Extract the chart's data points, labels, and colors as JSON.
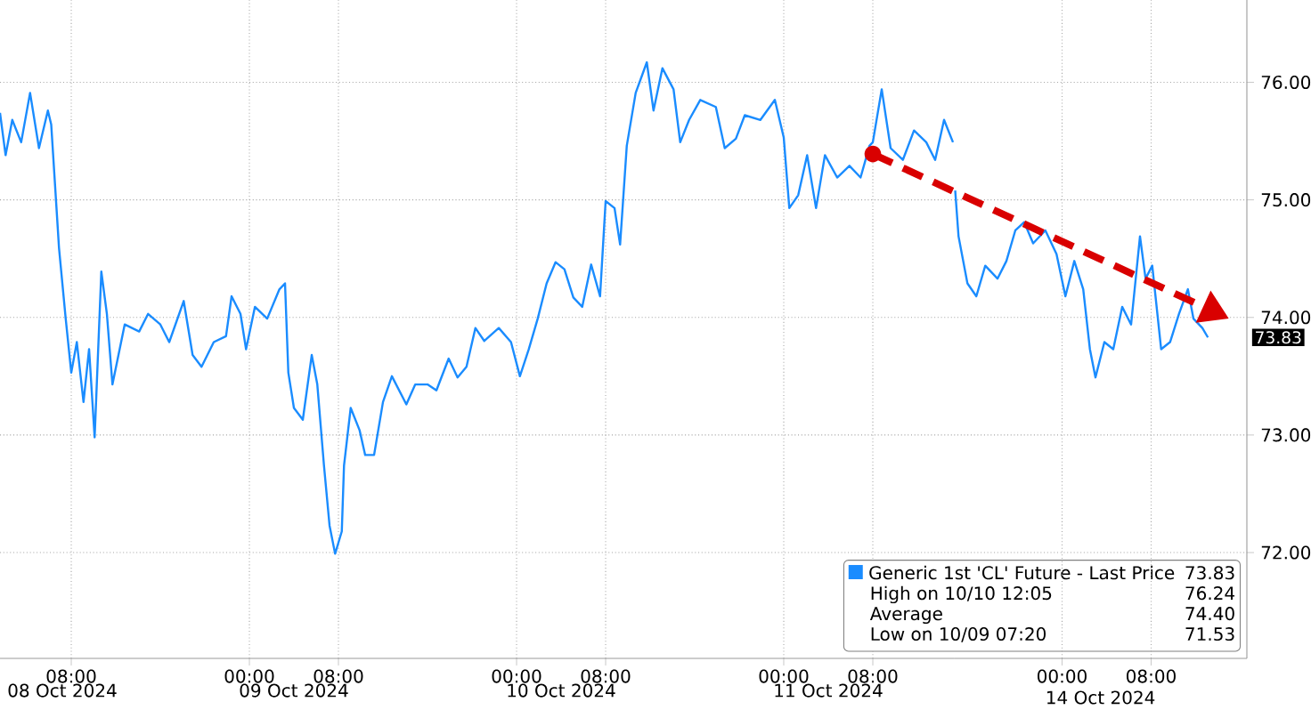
{
  "chart_data": [
    {
      "type": "line",
      "x": [
        "2024-10-08T01:36",
        "2024-10-08T02:06",
        "2024-10-08T02:42",
        "2024-10-08T03:30",
        "2024-10-08T04:18",
        "2024-10-08T05:06",
        "2024-10-08T05:54",
        "2024-10-08T06:12",
        "2024-10-08T06:42",
        "2024-10-08T06:54",
        "2024-10-08T07:30",
        "2024-10-08T08:00",
        "2024-10-08T08:30",
        "2024-10-08T09:06",
        "2024-10-08T09:36",
        "2024-10-08T10:06",
        "2024-10-08T10:42",
        "2024-10-08T11:12",
        "2024-10-08T11:42",
        "2024-10-08T12:48",
        "2024-10-08T14:06",
        "2024-10-08T14:54",
        "2024-10-08T16:00",
        "2024-10-08T16:48",
        "2024-10-08T18:06",
        "2024-10-08T18:54",
        "2024-10-08T19:42",
        "2024-10-08T20:48",
        "2024-10-08T21:54",
        "2024-10-08T22:24",
        "2024-10-08T23:12",
        "2024-10-08T23:42",
        "2024-10-09T00:30",
        "2024-10-09T01:36",
        "2024-10-09T02:42",
        "2024-10-09T03:12",
        "2024-10-09T03:30",
        "2024-10-09T04:00",
        "2024-10-09T04:48",
        "2024-10-09T05:36",
        "2024-10-09T06:06",
        "2024-10-09T06:42",
        "2024-10-09T07:12",
        "2024-10-09T07:42",
        "2024-10-09T08:18",
        "2024-10-09T08:30",
        "2024-10-09T09:06",
        "2024-10-09T09:54",
        "2024-10-09T10:24",
        "2024-10-09T11:12",
        "2024-10-09T12:00",
        "2024-10-09T12:48",
        "2024-10-09T14:06",
        "2024-10-09T14:54",
        "2024-10-09T16:00",
        "2024-10-09T16:48",
        "2024-10-09T17:54",
        "2024-10-09T18:42",
        "2024-10-09T19:30",
        "2024-10-09T20:18",
        "2024-10-09T21:06",
        "2024-10-09T22:24",
        "2024-10-09T23:30",
        "2024-10-10T00:18",
        "2024-10-10T01:06",
        "2024-10-10T01:54",
        "2024-10-10T02:42",
        "2024-10-10T03:30",
        "2024-10-10T04:18",
        "2024-10-10T05:06",
        "2024-10-10T05:54",
        "2024-10-10T06:42",
        "2024-10-10T07:30",
        "2024-10-10T08:00",
        "2024-10-10T08:48",
        "2024-10-10T09:18",
        "2024-10-10T09:54",
        "2024-10-10T10:42",
        "2024-10-10T11:42",
        "2024-10-10T12:18",
        "2024-10-10T13:06",
        "2024-10-10T14:06",
        "2024-10-10T14:42",
        "2024-10-10T15:30",
        "2024-10-10T16:30",
        "2024-10-10T17:54",
        "2024-10-10T18:42",
        "2024-10-10T19:42",
        "2024-10-10T20:30",
        "2024-10-10T21:54",
        "2024-10-10T23:12",
        "2024-10-11T00:00",
        "2024-10-11T00:30",
        "2024-10-11T01:18",
        "2024-10-11T02:06",
        "2024-10-11T02:54",
        "2024-10-11T03:42",
        "2024-10-11T04:48",
        "2024-10-11T05:54",
        "2024-10-11T06:54",
        "2024-10-11T07:42",
        "2024-10-11T08:00",
        "2024-10-11T08:48",
        "2024-10-11T09:36",
        "2024-10-11T10:42",
        "2024-10-11T11:42",
        "2024-10-11T12:48",
        "2024-10-11T13:36",
        "2024-10-11T14:24",
        "2024-10-11T15:12"
      ],
      "series": [
        {
          "name": "Generic 1st 'CL' Future - Last Price",
          "color": "#1a8cff",
          "values": [
            75.74,
            75.38,
            75.68,
            75.49,
            75.91,
            75.44,
            75.76,
            75.64,
            74.89,
            74.59,
            73.99,
            73.53,
            73.79,
            73.28,
            73.73,
            72.98,
            74.39,
            74.03,
            73.43,
            73.94,
            73.88,
            74.03,
            73.94,
            73.79,
            74.14,
            73.68,
            73.58,
            73.79,
            73.84,
            74.18,
            74.03,
            73.73,
            74.09,
            73.99,
            74.24,
            74.29,
            73.53,
            73.23,
            73.13,
            73.68,
            73.43,
            72.74,
            72.23,
            71.99,
            72.18,
            72.74,
            73.23,
            73.04,
            72.83,
            72.83,
            73.28,
            73.5,
            73.26,
            73.43,
            73.43,
            73.38,
            73.65,
            73.49,
            73.58,
            73.91,
            73.8,
            73.91,
            73.79,
            73.5,
            73.73,
            73.99,
            74.29,
            74.47,
            74.41,
            74.17,
            74.09,
            74.45,
            74.18,
            74.99,
            74.93,
            74.62,
            75.46,
            75.91,
            76.17,
            75.76,
            76.12,
            75.94,
            75.49,
            75.68,
            75.85,
            75.79,
            75.44,
            75.52,
            75.72,
            75.68,
            75.85,
            75.53,
            74.93,
            75.04,
            75.38,
            74.93,
            75.38,
            75.19,
            75.29,
            75.19,
            75.46,
            75.49,
            75.94,
            75.44,
            75.34,
            75.59,
            75.49,
            75.34,
            75.68,
            75.49
          ]
        }
      ],
      "xlim": [
        "2024-10-08T01:36",
        "2024-10-11T15:18"
      ],
      "xticks": [
        {
          "value": "2024-10-08T08:00",
          "label": "08:00"
        },
        {
          "value": "2024-10-09T00:00",
          "label": "00:00"
        },
        {
          "value": "2024-10-09T08:00",
          "label": "08:00"
        },
        {
          "value": "2024-10-10T00:00",
          "label": "00:00"
        },
        {
          "value": "2024-10-10T08:00",
          "label": "08:00"
        },
        {
          "value": "2024-10-11T00:00",
          "label": "00:00"
        },
        {
          "value": "2024-10-11T08:00",
          "label": "08:00"
        }
      ],
      "x2lim": [
        "2024-10-08T01:36",
        "2024-10-11T15:18"
      ],
      "x2ticks": [
        {
          "value": "2024-10-08T07:12",
          "label": "08 Oct 2024"
        },
        {
          "value": "2024-10-09T04:00",
          "label": "09 Oct 2024"
        },
        {
          "value": "2024-10-10T04:00",
          "label": "10 Oct 2024"
        },
        {
          "value": "2024-10-11T04:00",
          "label": "11 Oct 2024"
        }
      ],
      "ylim": [
        71.1,
        76.7
      ],
      "yticks": [
        {
          "value": 72,
          "label": null
        },
        {
          "value": 73,
          "label": null
        },
        {
          "value": 74,
          "label": null
        },
        {
          "value": 75,
          "label": null
        },
        {
          "value": 76,
          "label": null
        }
      ],
      "tick_labels": "x",
      "grid": true,
      "legend": "bottom right",
      "marker": "none",
      "line_style": "solid",
      "annotations": [
        "73.83",
        "High on 10/10 12:05",
        "76.24",
        "Average",
        "74.40",
        "Low on 10/09 07:20",
        "71.53"
      ]
    },
    {
      "type": "line",
      "x": [
        "2024-10-13T14:24",
        "2024-10-13T14:42",
        "2024-10-13T15:30",
        "2024-10-13T16:18",
        "2024-10-13T17:06",
        "2024-10-13T18:12",
        "2024-10-13T19:00",
        "2024-10-13T19:48",
        "2024-10-13T20:36",
        "2024-10-13T21:24",
        "2024-10-13T22:30",
        "2024-10-13T23:30",
        "2024-10-14T00:18",
        "2024-10-14T01:06",
        "2024-10-14T01:54",
        "2024-10-14T02:30",
        "2024-10-14T03:00",
        "2024-10-14T03:48",
        "2024-10-14T04:36",
        "2024-10-14T05:24",
        "2024-10-14T06:12",
        "2024-10-14T07:00",
        "2024-10-14T07:30",
        "2024-10-14T08:06",
        "2024-10-14T08:54",
        "2024-10-14T09:42",
        "2024-10-14T10:30",
        "2024-10-14T11:18",
        "2024-10-14T11:48",
        "2024-10-14T12:36",
        "2024-10-14T13:06"
      ],
      "series": [
        {
          "color": "#1a8cff",
          "values": [
            75.08,
            74.69,
            74.29,
            74.18,
            74.44,
            74.33,
            74.48,
            74.74,
            74.81,
            74.63,
            74.74,
            74.54,
            74.18,
            74.48,
            74.24,
            73.73,
            73.49,
            73.79,
            73.73,
            74.09,
            73.94,
            74.69,
            74.33,
            74.44,
            73.73,
            73.79,
            74.03,
            74.24,
            73.99,
            73.91,
            73.83
          ]
        }
      ],
      "xlim": [
        "2024-10-13T14:18",
        "2024-10-14T16:36"
      ],
      "xticks": [
        {
          "value": "2024-10-14T00:00",
          "label": "00:00"
        },
        {
          "value": "2024-10-14T08:00",
          "label": "08:00"
        }
      ],
      "ylim": [
        71.1,
        76.7
      ],
      "yticks": [
        {
          "value": 72,
          "label": "72.00"
        },
        {
          "value": 73,
          "label": "73.00"
        },
        {
          "value": 74,
          "label": "74.00"
        },
        {
          "value": 75,
          "label": "75.00"
        },
        {
          "value": 76,
          "label": "76.00"
        }
      ],
      "grid": true,
      "marker": "none",
      "line_style": "solid",
      "annotations": [
        "14 Oct 2024",
        "73.83"
      ]
    }
  ]
}
